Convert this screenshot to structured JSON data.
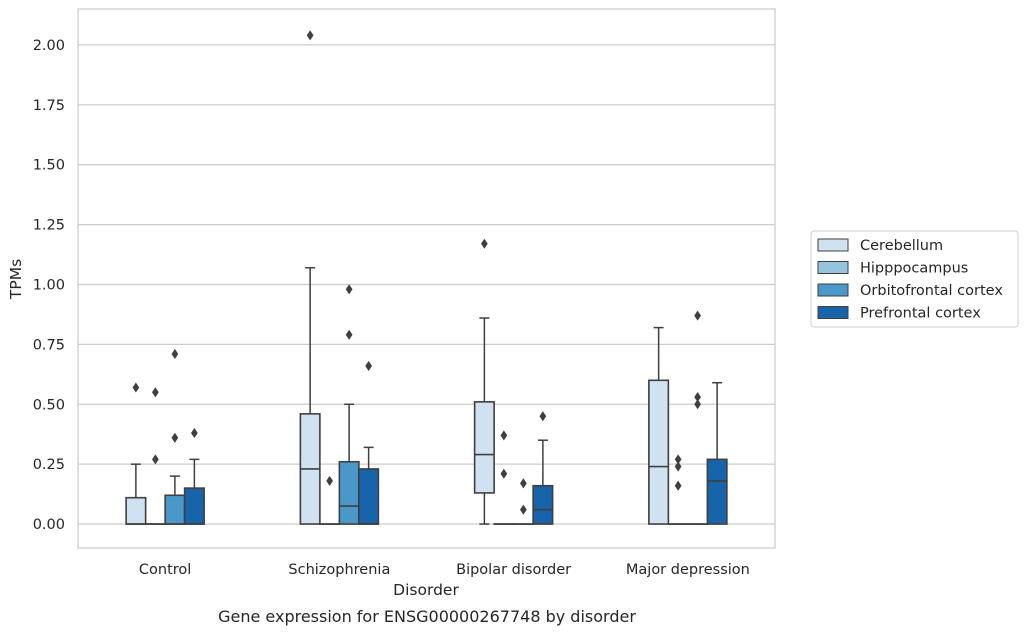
{
  "chart_data": {
    "type": "box",
    "title": "Gene expression for ENSG00000267748 by disorder",
    "xlabel": "Disorder",
    "ylabel": "TPMs",
    "ylim": [
      -0.1,
      2.15
    ],
    "yticks": [
      "0.00",
      "0.25",
      "0.50",
      "0.75",
      "1.00",
      "1.25",
      "1.50",
      "1.75",
      "2.00"
    ],
    "grid": "horizontal",
    "legend_position": "right",
    "categories": [
      "Control",
      "Schizophrenia",
      "Bipolar disorder",
      "Major depression"
    ],
    "series": [
      {
        "name": "Cerebellum",
        "color": "#d0e1f2",
        "boxes": [
          {
            "q1": 0.0,
            "median": 0.0,
            "q3": 0.11,
            "whisker_low": 0.0,
            "whisker_high": 0.25,
            "outliers": [
              0.57
            ]
          },
          {
            "q1": 0.0,
            "median": 0.23,
            "q3": 0.46,
            "whisker_low": 0.0,
            "whisker_high": 1.07,
            "outliers": [
              2.04
            ]
          },
          {
            "q1": 0.13,
            "median": 0.29,
            "q3": 0.51,
            "whisker_low": 0.0,
            "whisker_high": 0.86,
            "outliers": [
              1.17
            ]
          },
          {
            "q1": 0.0,
            "median": 0.24,
            "q3": 0.6,
            "whisker_low": 0.0,
            "whisker_high": 0.82,
            "outliers": []
          }
        ]
      },
      {
        "name": "Hipppocampus",
        "color": "#94c4df",
        "boxes": [
          {
            "q1": 0.0,
            "median": 0.0,
            "q3": 0.0,
            "whisker_low": 0.0,
            "whisker_high": 0.0,
            "outliers": [
              0.55,
              0.27
            ]
          },
          {
            "q1": 0.0,
            "median": 0.0,
            "q3": 0.0,
            "whisker_low": 0.0,
            "whisker_high": 0.0,
            "outliers": [
              0.18
            ]
          },
          {
            "q1": 0.0,
            "median": 0.0,
            "q3": 0.0,
            "whisker_low": 0.0,
            "whisker_high": 0.0,
            "outliers": [
              0.37,
              0.21
            ]
          },
          {
            "q1": 0.0,
            "median": 0.0,
            "q3": 0.0,
            "whisker_low": 0.0,
            "whisker_high": 0.0,
            "outliers": [
              0.27,
              0.24,
              0.16
            ]
          }
        ]
      },
      {
        "name": "Orbitofrontal cortex",
        "color": "#4a98c9",
        "boxes": [
          {
            "q1": 0.0,
            "median": 0.0,
            "q3": 0.12,
            "whisker_low": 0.0,
            "whisker_high": 0.2,
            "outliers": [
              0.71,
              0.36
            ]
          },
          {
            "q1": 0.0,
            "median": 0.075,
            "q3": 0.26,
            "whisker_low": 0.0,
            "whisker_high": 0.5,
            "outliers": [
              0.98,
              0.79
            ]
          },
          {
            "q1": 0.0,
            "median": 0.0,
            "q3": 0.0,
            "whisker_low": 0.0,
            "whisker_high": 0.0,
            "outliers": [
              0.17,
              0.06
            ]
          },
          {
            "q1": 0.0,
            "median": 0.0,
            "q3": 0.0,
            "whisker_low": 0.0,
            "whisker_high": 0.0,
            "outliers": [
              0.87,
              0.53,
              0.5
            ]
          }
        ]
      },
      {
        "name": "Prefrontal cortex",
        "color": "#1764ab",
        "boxes": [
          {
            "q1": 0.0,
            "median": 0.0,
            "q3": 0.15,
            "whisker_low": 0.0,
            "whisker_high": 0.27,
            "outliers": [
              0.38
            ]
          },
          {
            "q1": 0.0,
            "median": 0.0,
            "q3": 0.23,
            "whisker_low": 0.0,
            "whisker_high": 0.32,
            "outliers": [
              0.66
            ]
          },
          {
            "q1": 0.0,
            "median": 0.06,
            "q3": 0.16,
            "whisker_low": 0.0,
            "whisker_high": 0.35,
            "outliers": [
              0.45
            ]
          },
          {
            "q1": 0.0,
            "median": 0.18,
            "q3": 0.27,
            "whisker_low": 0.0,
            "whisker_high": 0.59,
            "outliers": []
          }
        ]
      }
    ]
  }
}
